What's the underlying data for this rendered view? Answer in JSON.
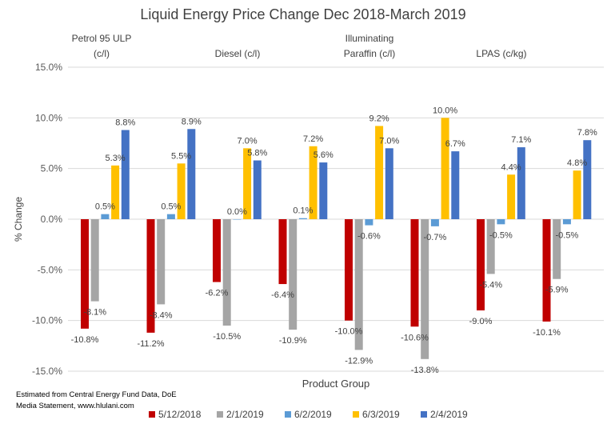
{
  "chart_data": {
    "type": "bar",
    "title": "Liquid Energy Price Change Dec 2018-March 2019",
    "xlabel": "Product Group",
    "ylabel": "% Change",
    "ylim": [
      -15,
      15
    ],
    "yticks": [
      "15.0%",
      "10.0%",
      "5.0%",
      "0.0%",
      "-5.0%",
      "-10.0%",
      "-15.0%"
    ],
    "ytick_values": [
      15,
      10,
      5,
      0,
      -5,
      -10,
      -15
    ],
    "grid": true,
    "legend": "bottom",
    "group_headers": [
      "Petrol 95 ULP\n(c/l)",
      "Diesel (c/l)",
      "Illuminating\nParaffin (c/l)",
      "LPAS (c/kg)"
    ],
    "categories": [
      "",
      "",
      "",
      "",
      "",
      "",
      "",
      ""
    ],
    "series": [
      {
        "name": "5/12/2018",
        "color": "#C00000",
        "values": [
          -10.8,
          -11.2,
          -6.2,
          -6.4,
          -10.0,
          -10.6,
          -9.0,
          -10.1
        ]
      },
      {
        "name": "2/1/2019",
        "color": "#A5A5A5",
        "values": [
          -8.1,
          -8.4,
          -10.5,
          -10.9,
          -12.9,
          -13.8,
          -5.4,
          -5.9
        ]
      },
      {
        "name": "6/2/2019",
        "color": "#5B9BD5",
        "values": [
          0.5,
          0.5,
          0.0,
          0.1,
          -0.6,
          -0.7,
          -0.5,
          -0.5
        ]
      },
      {
        "name": "6/3/2019",
        "color": "#FFC000",
        "values": [
          5.3,
          5.5,
          7.0,
          7.2,
          9.2,
          10.0,
          4.4,
          4.8
        ]
      },
      {
        "name": "2/4/2019",
        "color": "#4472C4",
        "values": [
          8.8,
          8.9,
          5.8,
          5.6,
          7.0,
          6.7,
          7.1,
          7.8
        ]
      }
    ],
    "source_note": "Estimated from Central Energy Fund Data, DoE Media Statement, www.hlulani.com"
  }
}
